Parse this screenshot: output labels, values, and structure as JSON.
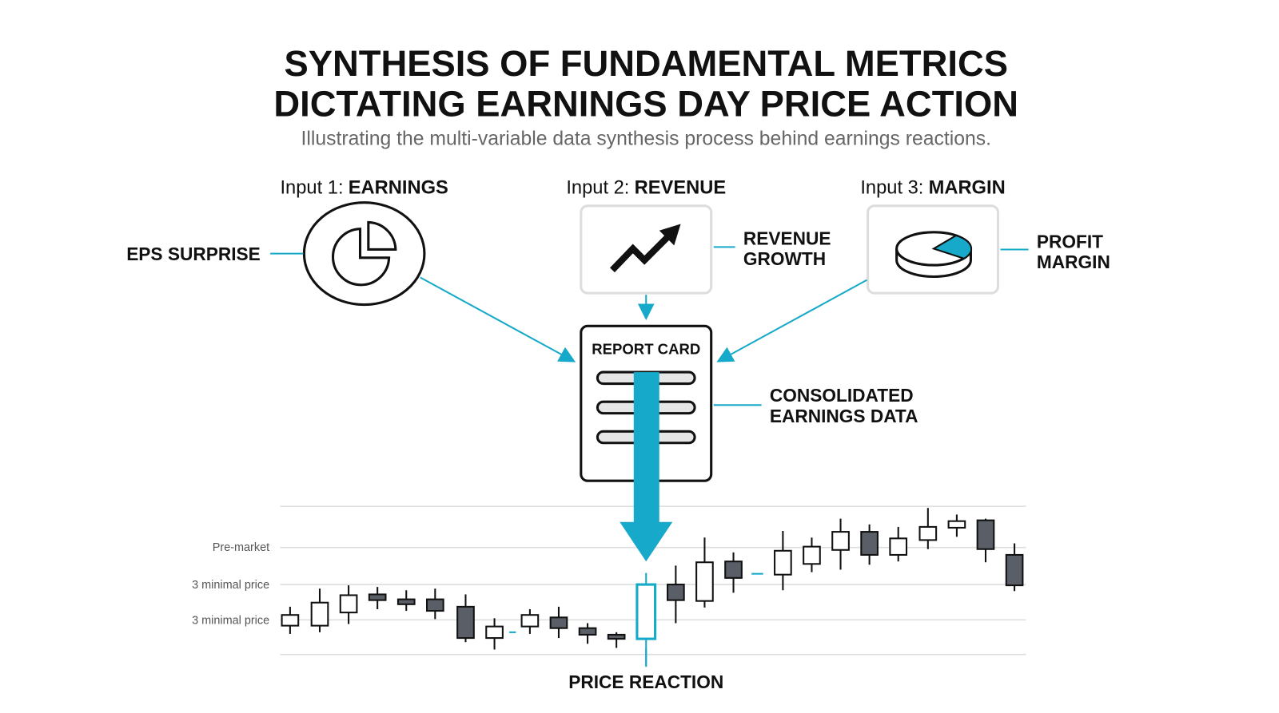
{
  "header": {
    "title_lines": [
      "SYNTHESIS OF FUNDAMENTAL METRICS",
      "DICTATING EARNINGS DAY PRICE ACTION"
    ],
    "subtitle": "Illustrating the multi-variable data synthesis process behind earnings reactions."
  },
  "inputs": [
    {
      "prefix": "Input 1:",
      "name": "EARNINGS",
      "label_lines": [
        "EPS SURPRISE"
      ]
    },
    {
      "prefix": "Input 2:",
      "name": "REVENUE",
      "label_lines": [
        "REVENUE",
        "GROWTH"
      ]
    },
    {
      "prefix": "Input 3:",
      "name": "MARGIN",
      "label_lines": [
        "PROFIT",
        "MARGIN"
      ]
    }
  ],
  "report_card": {
    "title": "REPORT CARD",
    "label_lines": [
      "CONSOLIDATED",
      "EARNINGS DATA"
    ]
  },
  "price_chart": {
    "row_labels": [
      "Pre-market",
      "3 minimal price",
      "3 minimal price"
    ],
    "caption": "PRICE REACTION"
  }
}
